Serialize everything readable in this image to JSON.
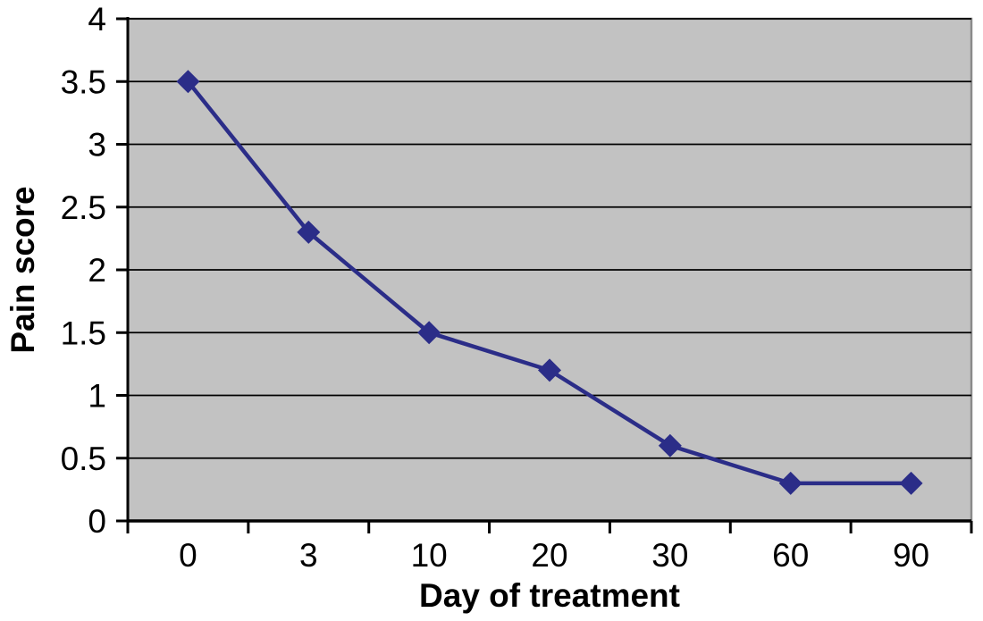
{
  "chart_data": {
    "type": "line",
    "title": "",
    "xlabel": "Day of treatment",
    "ylabel": "Pain score",
    "categories": [
      "0",
      "3",
      "10",
      "20",
      "30",
      "60",
      "90"
    ],
    "series": [
      {
        "name": "Pain score",
        "values": [
          3.5,
          2.3,
          1.5,
          1.2,
          0.6,
          0.3,
          0.3
        ]
      }
    ],
    "ylim": [
      0,
      4
    ],
    "ytick_step": 0.5,
    "y_tick_labels": [
      "0",
      "0.5",
      "1",
      "1.5",
      "2",
      "2.5",
      "3",
      "3.5",
      "4"
    ],
    "grid": "horizontal",
    "legend": "none",
    "marker": "diamond",
    "colors": {
      "series": "#2b2d88",
      "plot_background": "#c2c2c2",
      "plot_border": "#8a8a8a",
      "gridline": "#000000",
      "axis": "#000000",
      "text": "#000000",
      "page_background": "#ffffff"
    }
  }
}
